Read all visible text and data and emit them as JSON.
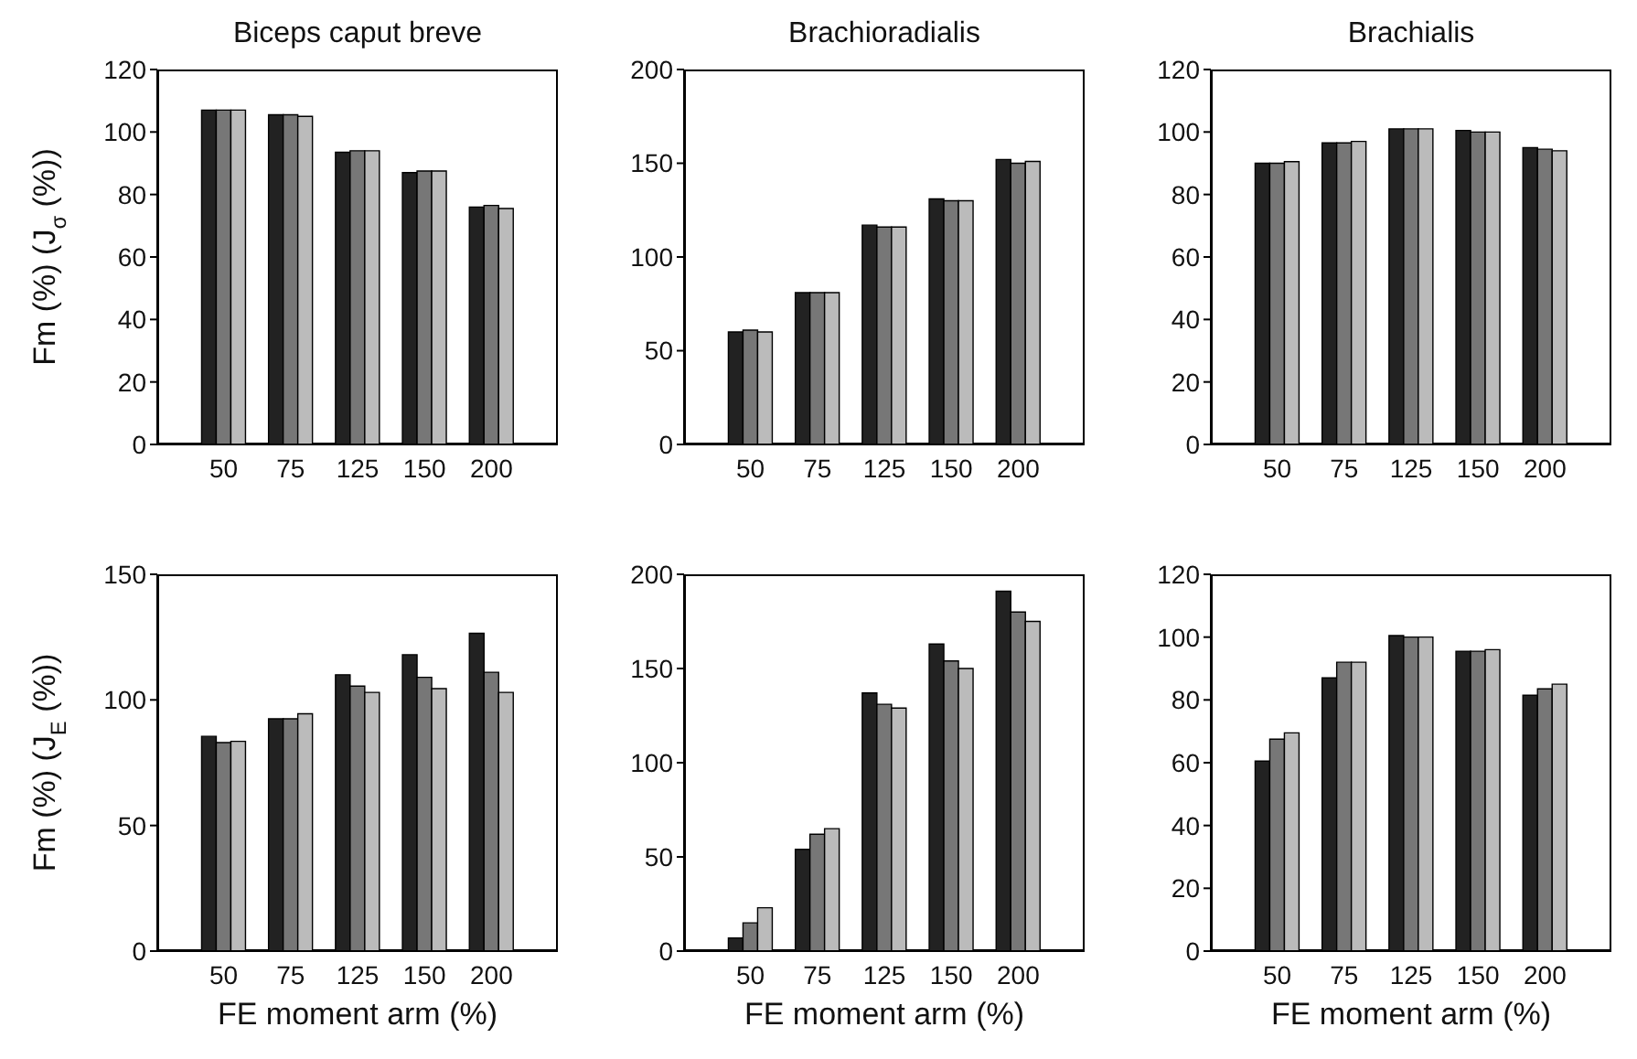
{
  "chart_data": [
    {
      "type": "bar",
      "title": "Biceps caput breve",
      "ylabel": "Fm (%)  (J$_{σ}$ (%))",
      "categories": [
        "50",
        "75",
        "125",
        "150",
        "200"
      ],
      "ylim": [
        0,
        120
      ],
      "yticks": [
        0,
        20,
        40,
        60,
        80,
        100,
        120
      ],
      "series": [
        {
          "color": "#222222",
          "values": [
            107,
            105.5,
            93.5,
            87,
            76
          ]
        },
        {
          "color": "#777777",
          "values": [
            107,
            105.5,
            94,
            87.5,
            76.5
          ]
        },
        {
          "color": "#bbbbbb",
          "values": [
            107,
            105,
            94,
            87.5,
            75.5
          ]
        }
      ]
    },
    {
      "type": "bar",
      "title": "Brachioradialis",
      "categories": [
        "50",
        "75",
        "125",
        "150",
        "200"
      ],
      "ylim": [
        0,
        200
      ],
      "yticks": [
        0,
        50,
        100,
        150,
        200
      ],
      "series": [
        {
          "color": "#222222",
          "values": [
            60,
            81,
            117,
            131,
            152
          ]
        },
        {
          "color": "#777777",
          "values": [
            61,
            81,
            116,
            130,
            150
          ]
        },
        {
          "color": "#bbbbbb",
          "values": [
            60,
            81,
            116,
            130,
            151
          ]
        }
      ]
    },
    {
      "type": "bar",
      "title": "Brachialis",
      "categories": [
        "50",
        "75",
        "125",
        "150",
        "200"
      ],
      "ylim": [
        0,
        120
      ],
      "yticks": [
        0,
        20,
        40,
        60,
        80,
        100,
        120
      ],
      "series": [
        {
          "color": "#222222",
          "values": [
            90,
            96.5,
            101,
            100.5,
            95
          ]
        },
        {
          "color": "#777777",
          "values": [
            90,
            96.5,
            101,
            100,
            94.5
          ]
        },
        {
          "color": "#bbbbbb",
          "values": [
            90.5,
            97,
            101,
            100,
            94
          ]
        }
      ]
    },
    {
      "type": "bar",
      "ylabel": "Fm (%)  (J$_{E}$ (%))",
      "xlabel": "FE moment arm (%)",
      "categories": [
        "50",
        "75",
        "125",
        "150",
        "200"
      ],
      "ylim": [
        0,
        150
      ],
      "yticks": [
        0,
        50,
        100,
        150
      ],
      "series": [
        {
          "color": "#222222",
          "values": [
            85.5,
            92.5,
            110,
            118,
            126.5
          ]
        },
        {
          "color": "#777777",
          "values": [
            83,
            92.5,
            105.5,
            109,
            111
          ]
        },
        {
          "color": "#bbbbbb",
          "values": [
            83.5,
            94.5,
            103,
            104.5,
            103
          ]
        }
      ]
    },
    {
      "type": "bar",
      "xlabel": "FE moment arm (%)",
      "categories": [
        "50",
        "75",
        "125",
        "150",
        "200"
      ],
      "ylim": [
        0,
        200
      ],
      "yticks": [
        0,
        50,
        100,
        150,
        200
      ],
      "series": [
        {
          "color": "#222222",
          "values": [
            7,
            54,
            137,
            163,
            191
          ]
        },
        {
          "color": "#777777",
          "values": [
            15,
            62,
            131,
            154,
            180
          ]
        },
        {
          "color": "#bbbbbb",
          "values": [
            23,
            65,
            129,
            150,
            175
          ]
        }
      ]
    },
    {
      "type": "bar",
      "xlabel": "FE moment arm (%)",
      "categories": [
        "50",
        "75",
        "125",
        "150",
        "200"
      ],
      "ylim": [
        0,
        120
      ],
      "yticks": [
        0,
        20,
        40,
        60,
        80,
        100,
        120
      ],
      "series": [
        {
          "color": "#222222",
          "values": [
            60.5,
            87,
            100.5,
            95.5,
            81.5
          ]
        },
        {
          "color": "#777777",
          "values": [
            67.5,
            92,
            100,
            95.5,
            83.5
          ]
        },
        {
          "color": "#bbbbbb",
          "values": [
            69.5,
            92,
            100,
            96,
            85
          ]
        }
      ]
    }
  ]
}
